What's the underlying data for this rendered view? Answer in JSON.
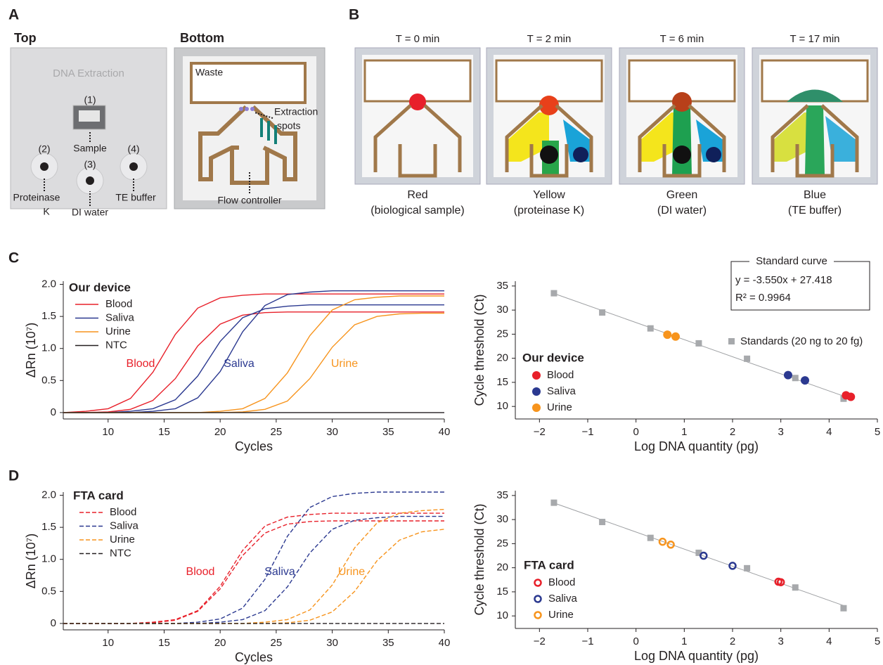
{
  "panel_a": {
    "label": "A",
    "top_title": "Top",
    "bottom_title": "Bottom",
    "top_labels": [
      "DNA Extraction",
      "(1)",
      "Sample",
      "(2)",
      "(3)",
      "(4)",
      "Proteinase",
      "K",
      "DI water",
      "TE buffer"
    ],
    "bottom_labels": [
      "Waste",
      "Extraction",
      "spots",
      "Flow controller"
    ]
  },
  "panel_b": {
    "label": "B",
    "frames": [
      {
        "time": "T = 0 min",
        "color": "Red",
        "reagent": "(biological sample)"
      },
      {
        "time": "T = 2 min",
        "color": "Yellow",
        "reagent": "(proteinase K)"
      },
      {
        "time": "T = 6 min",
        "color": "Green",
        "reagent": "(DI water)"
      },
      {
        "time": "T = 17 min",
        "color": "Blue",
        "reagent": "(TE buffer)"
      }
    ]
  },
  "panel_c": {
    "label": "C"
  },
  "panel_d": {
    "label": "D"
  },
  "chart_data": [
    {
      "type": "line",
      "line_style": "solid",
      "legend_title": "Our device",
      "x_label": "Cycles",
      "y_label": "ΔRn (10⁷)",
      "x": [
        6,
        8,
        10,
        12,
        14,
        16,
        18,
        20,
        22,
        24,
        26,
        28,
        30,
        32,
        34,
        36,
        38,
        40
      ],
      "xlim": [
        6,
        40
      ],
      "xticks": [
        10,
        15,
        20,
        25,
        30,
        35,
        40
      ],
      "ylim": [
        -0.1,
        2.05
      ],
      "yticks": [
        0,
        0.5,
        {
          "value": 1,
          "label": "1.0"
        },
        1.5,
        {
          "value": 2,
          "label": "2.0"
        }
      ],
      "series": [
        {
          "name": "Blood",
          "label": "Blood",
          "color": "#e8202a",
          "values": [
            [
              0,
              0.02,
              0.06,
              0.22,
              0.63,
              1.22,
              1.63,
              1.79,
              1.83,
              1.85,
              1.85,
              1.85,
              1.85,
              1.85,
              1.85,
              1.85,
              1.85,
              1.85
            ],
            [
              0,
              0,
              0.01,
              0.05,
              0.19,
              0.53,
              1.04,
              1.38,
              1.52,
              1.56,
              1.57,
              1.57,
              1.57,
              1.57,
              1.57,
              1.57,
              1.57,
              1.57
            ]
          ]
        },
        {
          "name": "Saliva",
          "label": "Saliva",
          "color": "#2b3990",
          "values": [
            [
              0,
              0,
              0,
              0.02,
              0.06,
              0.2,
              0.57,
              1.11,
              1.48,
              1.62,
              1.66,
              1.68,
              1.68,
              1.68,
              1.68,
              1.68,
              1.68,
              1.68
            ],
            [
              0,
              0,
              0,
              0,
              0.02,
              0.06,
              0.23,
              0.64,
              1.26,
              1.67,
              1.84,
              1.88,
              1.9,
              1.9,
              1.9,
              1.9,
              1.9,
              1.9
            ]
          ]
        },
        {
          "name": "Urine",
          "label": "Urine",
          "color": "#f7941d",
          "values": [
            [
              0,
              0,
              0,
              0,
              0,
              0,
              0,
              0.02,
              0.06,
              0.22,
              0.62,
              1.2,
              1.6,
              1.76,
              1.8,
              1.82,
              1.82,
              1.82
            ],
            [
              0,
              0,
              0,
              0,
              0,
              0,
              0,
              0,
              0.01,
              0.05,
              0.18,
              0.53,
              1.02,
              1.37,
              1.5,
              1.54,
              1.55,
              1.55
            ]
          ]
        },
        {
          "name": "NTC",
          "color": "#231f20",
          "values": [
            [
              0,
              0,
              0,
              0,
              0,
              0,
              0,
              0,
              0,
              0,
              0,
              0,
              0,
              0,
              0,
              0,
              0,
              0
            ]
          ]
        }
      ]
    },
    {
      "type": "scatter",
      "marker": "filled",
      "legend_title": "Our device",
      "x_label": "Log DNA quantity (pg)",
      "y_label": "Cycle threshold (Ct)",
      "xlim": [
        -2.5,
        5
      ],
      "xticks": [
        {
          "value": -2,
          "label": "−2"
        },
        {
          "value": -1,
          "label": "−1"
        },
        0,
        1,
        2,
        3,
        4,
        5
      ],
      "ylim": [
        7.4,
        36
      ],
      "yticks": [
        10,
        15,
        20,
        25,
        30,
        35
      ],
      "fit_line": {
        "color": "#9d9fa2",
        "x": [
          -1.7,
          4.3
        ],
        "y": [
          33.45,
          12.15
        ]
      },
      "standards": {
        "name": "Standards (20 ng to 20 fg)",
        "color": "#a7a9ac",
        "x": [
          -1.7,
          -0.7,
          0.3,
          1.3,
          2.3,
          3.3,
          4.3
        ],
        "y": [
          33.5,
          29.5,
          26.2,
          23.1,
          19.9,
          15.9,
          11.6
        ]
      },
      "standard_curve": {
        "title": "Standard curve",
        "equation": "y = -3.550x + 27.418",
        "r2": "R² = 0.9964"
      },
      "series": [
        {
          "name": "Blood",
          "color": "#e8202a",
          "x": [
            4.35,
            4.45
          ],
          "y": [
            12.3,
            12.0
          ]
        },
        {
          "name": "Saliva",
          "color": "#2b3990",
          "x": [
            3.15,
            3.5
          ],
          "y": [
            16.5,
            15.4
          ]
        },
        {
          "name": "Urine",
          "color": "#f7941d",
          "x": [
            0.65,
            0.82
          ],
          "y": [
            24.9,
            24.5
          ]
        }
      ]
    },
    {
      "type": "line",
      "line_style": "dashed",
      "legend_title": "FTA card",
      "x_label": "Cycles",
      "y_label": "ΔRn (10⁷)",
      "x": [
        6,
        8,
        10,
        12,
        14,
        16,
        18,
        20,
        22,
        24,
        26,
        28,
        30,
        32,
        34,
        36,
        38,
        40
      ],
      "xlim": [
        6,
        40
      ],
      "xticks": [
        10,
        15,
        20,
        25,
        30,
        35,
        40
      ],
      "ylim": [
        -0.1,
        2.05
      ],
      "yticks": [
        0,
        0.5,
        {
          "value": 1,
          "label": "1.0"
        },
        1.5,
        {
          "value": 2,
          "label": "2.0"
        }
      ],
      "series": [
        {
          "name": "Blood",
          "label": "Blood",
          "color": "#e8202a",
          "values": [
            [
              0,
              0,
              0,
              0,
              0.02,
              0.06,
              0.2,
              0.58,
              1.14,
              1.52,
              1.66,
              1.7,
              1.72,
              1.72,
              1.72,
              1.72,
              1.72,
              1.72
            ],
            [
              0,
              0,
              0,
              0,
              0.01,
              0.05,
              0.19,
              0.54,
              1.06,
              1.41,
              1.55,
              1.59,
              1.6,
              1.6,
              1.6,
              1.6,
              1.6,
              1.6
            ]
          ]
        },
        {
          "name": "Saliva",
          "label": "Saliva",
          "color": "#2b3990",
          "values": [
            [
              0,
              0,
              0,
              0,
              0,
              0,
              0.02,
              0.07,
              0.24,
              0.69,
              1.36,
              1.81,
              1.98,
              2.03,
              2.05,
              2.05,
              2.05,
              2.05
            ],
            [
              0,
              0,
              0,
              0,
              0,
              0,
              0,
              0.02,
              0.06,
              0.2,
              0.57,
              1.1,
              1.47,
              1.61,
              1.65,
              1.67,
              1.67,
              1.67
            ]
          ]
        },
        {
          "name": "Urine",
          "label": "Urine",
          "color": "#f7941d",
          "values": [
            [
              0,
              0,
              0,
              0,
              0,
              0,
              0,
              0,
              0,
              0.02,
              0.06,
              0.21,
              0.6,
              1.18,
              1.57,
              1.72,
              1.76,
              1.78
            ],
            [
              0,
              0,
              0,
              0,
              0,
              0,
              0,
              0,
              0,
              0,
              0.01,
              0.05,
              0.18,
              0.5,
              0.98,
              1.3,
              1.43,
              1.47
            ]
          ]
        },
        {
          "name": "NTC",
          "color": "#231f20",
          "values": [
            [
              0,
              0,
              0,
              0,
              0,
              0,
              0,
              0,
              0,
              0,
              0,
              0,
              0,
              0,
              0,
              0,
              0,
              0
            ]
          ]
        }
      ]
    },
    {
      "type": "scatter",
      "marker": "open",
      "legend_title": "FTA card",
      "x_label": "Log DNA quantity (pg)",
      "y_label": "Cycle threshold (Ct)",
      "xlim": [
        -2.5,
        5
      ],
      "xticks": [
        {
          "value": -2,
          "label": "−2"
        },
        {
          "value": -1,
          "label": "−1"
        },
        0,
        1,
        2,
        3,
        4,
        5
      ],
      "ylim": [
        7.4,
        36
      ],
      "yticks": [
        10,
        15,
        20,
        25,
        30,
        35
      ],
      "fit_line": {
        "color": "#9d9fa2",
        "x": [
          -1.7,
          4.3
        ],
        "y": [
          33.45,
          12.15
        ]
      },
      "standards": {
        "color": "#a7a9ac",
        "x": [
          -1.7,
          -0.7,
          0.3,
          1.3,
          2.3,
          3.3,
          4.3
        ],
        "y": [
          33.5,
          29.5,
          26.2,
          23.1,
          19.9,
          15.9,
          11.6
        ]
      },
      "series": [
        {
          "name": "Blood",
          "color": "#e8202a",
          "x": [
            2.95,
            3.0
          ],
          "y": [
            17.1,
            17.0
          ]
        },
        {
          "name": "Saliva",
          "color": "#2b3990",
          "x": [
            1.4,
            2.0
          ],
          "y": [
            22.5,
            20.4
          ]
        },
        {
          "name": "Urine",
          "color": "#f7941d",
          "x": [
            0.55,
            0.72
          ],
          "y": [
            25.4,
            24.8
          ]
        }
      ]
    }
  ]
}
